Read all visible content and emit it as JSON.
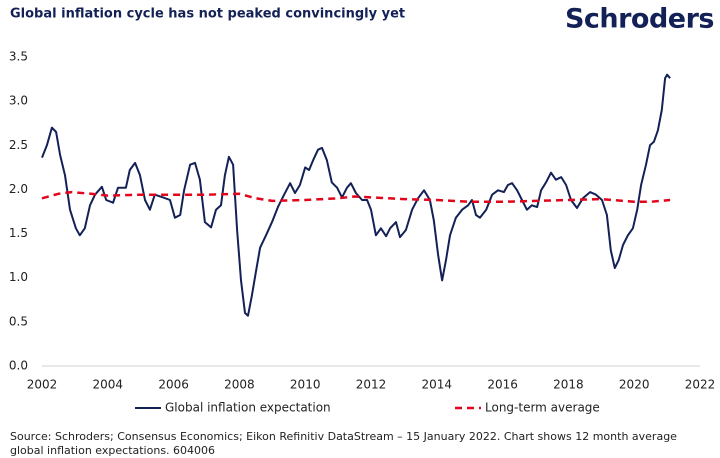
{
  "chart_data": {
    "type": "line",
    "title": "Global inflation cycle has not peaked convincingly yet",
    "brand": "Schroders",
    "source": "Source: Schroders; Consensus Economics; Eikon Refinitiv DataStream – 15 January 2022. Chart shows 12 month average global inflation expectations. 604006",
    "xlim": [
      2002,
      2022
    ],
    "xticks": [
      2002,
      2004,
      2006,
      2008,
      2010,
      2012,
      2014,
      2016,
      2018,
      2020,
      2022
    ],
    "ylim": [
      0,
      3.5
    ],
    "yticks": [
      {
        "value": 0,
        "label": "0.0"
      },
      0.5,
      {
        "value": 1,
        "label": "1.0"
      },
      1.5,
      {
        "value": 2,
        "label": "2.0"
      },
      2.5,
      {
        "value": 3,
        "label": "3.0"
      },
      3.5
    ],
    "grid": false,
    "legend": "bottom",
    "series": [
      {
        "name": "Global inflation expectation",
        "color": "#132157",
        "dashed": false,
        "x": [
          2002.0,
          2002.15,
          2002.3,
          2002.43,
          2002.55,
          2002.7,
          2002.85,
          2003.03,
          2003.15,
          2003.3,
          2003.46,
          2003.61,
          2003.82,
          2003.95,
          2004.16,
          2004.31,
          2004.55,
          2004.67,
          2004.83,
          2004.98,
          2005.13,
          2005.28,
          2005.43,
          2005.68,
          2005.89,
          2006.04,
          2006.2,
          2006.32,
          2006.5,
          2006.65,
          2006.8,
          2006.95,
          2007.14,
          2007.29,
          2007.44,
          2007.56,
          2007.68,
          2007.81,
          2007.93,
          2008.05,
          2008.17,
          2008.26,
          2008.38,
          2008.5,
          2008.63,
          2008.81,
          2008.99,
          2009.17,
          2009.36,
          2009.54,
          2009.69,
          2009.84,
          2010.0,
          2010.12,
          2010.24,
          2010.39,
          2010.51,
          2010.66,
          2010.81,
          2010.97,
          2011.12,
          2011.27,
          2011.39,
          2011.54,
          2011.73,
          2011.88,
          2012.0,
          2012.15,
          2012.3,
          2012.46,
          2012.58,
          2012.76,
          2012.88,
          2013.06,
          2013.25,
          2013.43,
          2013.61,
          2013.79,
          2013.91,
          2014.04,
          2014.16,
          2014.28,
          2014.4,
          2014.58,
          2014.77,
          2014.95,
          2015.07,
          2015.19,
          2015.31,
          2015.5,
          2015.68,
          2015.86,
          2016.04,
          2016.16,
          2016.29,
          2016.44,
          2016.59,
          2016.74,
          2016.89,
          2017.05,
          2017.17,
          2017.32,
          2017.47,
          2017.62,
          2017.78,
          2017.93,
          2018.08,
          2018.26,
          2018.44,
          2018.66,
          2018.84,
          2019.02,
          2019.17,
          2019.29,
          2019.41,
          2019.53,
          2019.66,
          2019.81,
          2019.96,
          2020.09,
          2020.21,
          2020.36,
          2020.48,
          2020.6,
          2020.72,
          2020.84,
          2020.94,
          2021.0,
          2021.09
        ],
        "values": [
          2.36,
          2.5,
          2.7,
          2.65,
          2.39,
          2.16,
          1.77,
          1.56,
          1.48,
          1.56,
          1.82,
          1.94,
          2.03,
          1.88,
          1.85,
          2.02,
          2.02,
          2.22,
          2.3,
          2.16,
          1.88,
          1.77,
          1.94,
          1.91,
          1.88,
          1.68,
          1.71,
          1.99,
          2.28,
          2.3,
          2.11,
          1.63,
          1.57,
          1.77,
          1.82,
          2.16,
          2.37,
          2.28,
          1.54,
          0.97,
          0.6,
          0.57,
          0.8,
          1.06,
          1.34,
          1.48,
          1.63,
          1.8,
          1.94,
          2.07,
          1.96,
          2.05,
          2.25,
          2.22,
          2.33,
          2.45,
          2.47,
          2.33,
          2.08,
          2.02,
          1.91,
          2.02,
          2.07,
          1.96,
          1.88,
          1.88,
          1.77,
          1.48,
          1.56,
          1.47,
          1.56,
          1.63,
          1.46,
          1.54,
          1.77,
          1.9,
          1.99,
          1.88,
          1.65,
          1.26,
          0.97,
          1.2,
          1.48,
          1.68,
          1.77,
          1.82,
          1.88,
          1.71,
          1.68,
          1.77,
          1.94,
          1.99,
          1.97,
          2.05,
          2.07,
          1.99,
          1.88,
          1.77,
          1.82,
          1.8,
          1.99,
          2.08,
          2.19,
          2.11,
          2.14,
          2.05,
          1.88,
          1.79,
          1.9,
          1.97,
          1.94,
          1.88,
          1.71,
          1.31,
          1.11,
          1.2,
          1.37,
          1.48,
          1.56,
          1.77,
          2.05,
          2.28,
          2.5,
          2.54,
          2.67,
          2.9,
          3.26,
          3.3,
          3.26
        ]
      },
      {
        "name": "Long-term average",
        "color": "#e3051b",
        "dashed": true,
        "x": [
          2002.0,
          2002.5,
          2002.9,
          2003.5,
          2004.0,
          2005.0,
          2006.0,
          2007.0,
          2008.0,
          2008.5,
          2009.0,
          2010.0,
          2011.0,
          2011.5,
          2012.0,
          2013.0,
          2014.0,
          2015.0,
          2016.0,
          2017.0,
          2018.0,
          2019.0,
          2020.0,
          2020.5,
          2021.09
        ],
        "values": [
          1.9,
          1.95,
          1.97,
          1.95,
          1.93,
          1.94,
          1.94,
          1.94,
          1.95,
          1.9,
          1.87,
          1.88,
          1.9,
          1.92,
          1.91,
          1.89,
          1.88,
          1.86,
          1.86,
          1.87,
          1.88,
          1.89,
          1.86,
          1.86,
          1.88
        ]
      }
    ]
  }
}
